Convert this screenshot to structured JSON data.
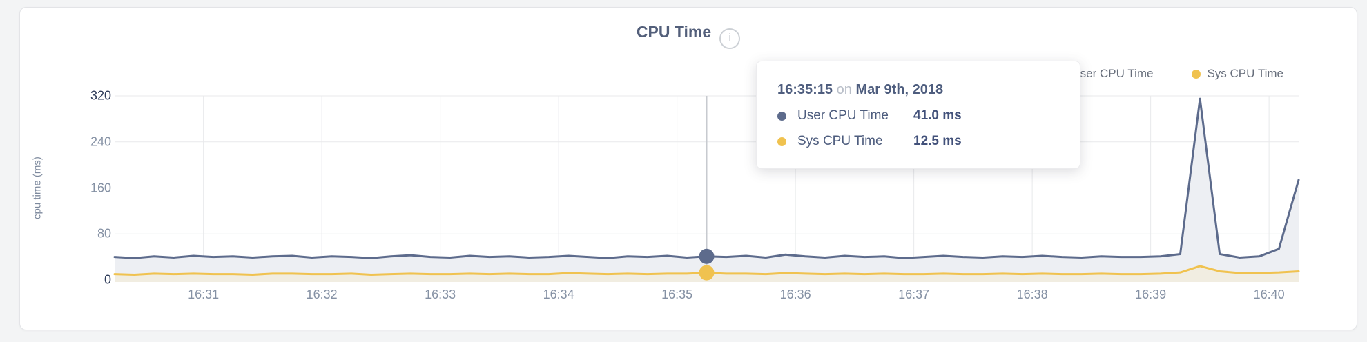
{
  "header": {
    "title": "CPU Time",
    "info_icon": "i"
  },
  "legend": {
    "items": [
      {
        "label": "User CPU Time",
        "color": "#5d6b8c"
      },
      {
        "label": "Sys CPU Time",
        "color": "#f0c24f"
      }
    ]
  },
  "tooltip": {
    "time": "16:35:15",
    "connector": "on",
    "date": "Mar 9th, 2018",
    "rows": [
      {
        "label": "User CPU Time",
        "value": "41.0 ms",
        "color": "#5d6b8c"
      },
      {
        "label": "Sys CPU Time",
        "value": "12.5 ms",
        "color": "#f0c24f"
      }
    ]
  },
  "chart_data": {
    "type": "area",
    "title": "CPU Time",
    "xlabel": "",
    "ylabel": "cpu time (ms)",
    "ylim": [
      0,
      320
    ],
    "y_ticks": [
      0,
      80,
      160,
      240,
      320
    ],
    "x_ticks": [
      "16:31",
      "16:32",
      "16:33",
      "16:34",
      "16:35",
      "16:36",
      "16:37",
      "16:38",
      "16:39",
      "16:40"
    ],
    "x_start": "16:30:15",
    "x_step_seconds": 10,
    "date": "Mar 9th, 2018",
    "grid": true,
    "legend_position": "top-right",
    "hover": {
      "index": 30,
      "time": "16:35:15"
    },
    "series": [
      {
        "name": "User CPU Time",
        "color": "#5d6b8c",
        "fill": "#edeff3",
        "unit": "ms",
        "values": [
          40,
          38,
          41,
          39,
          42,
          40,
          41,
          39,
          41,
          42,
          39,
          41,
          40,
          38,
          41,
          43,
          40,
          39,
          42,
          40,
          41,
          39,
          40,
          42,
          40,
          38,
          41,
          40,
          42,
          39,
          41,
          40,
          42,
          39,
          44,
          41,
          39,
          42,
          40,
          41,
          38,
          40,
          42,
          40,
          39,
          41,
          40,
          42,
          40,
          39,
          41,
          40,
          40,
          41,
          45,
          315,
          45,
          39,
          41,
          54,
          174
        ]
      },
      {
        "name": "Sys CPU Time",
        "color": "#f0c24f",
        "fill": "#f1ede1",
        "unit": "ms",
        "values": [
          10,
          9,
          11,
          10,
          11,
          10,
          10,
          9,
          11,
          11,
          10,
          10,
          11,
          9,
          10,
          11,
          10,
          10,
          11,
          10,
          11,
          10,
          10,
          12,
          11,
          10,
          11,
          10,
          11,
          11,
          12.5,
          11,
          11,
          10,
          12,
          11,
          10,
          11,
          10,
          11,
          10,
          10,
          11,
          10,
          10,
          11,
          10,
          11,
          10,
          10,
          11,
          10,
          10,
          11,
          13,
          24,
          15,
          12,
          12,
          13,
          15
        ]
      }
    ]
  }
}
